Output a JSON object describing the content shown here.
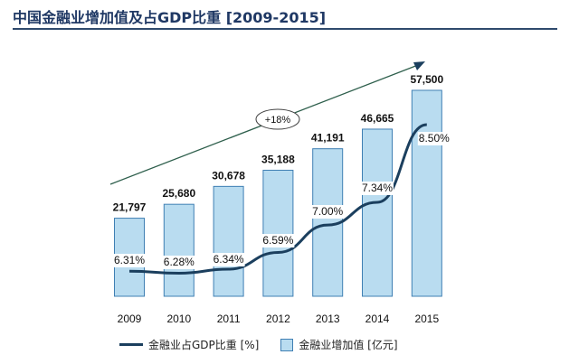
{
  "title": "中国金融业增加值及占GDP比重 [2009-2015]",
  "chart_data": {
    "type": "bar",
    "categories": [
      "2009",
      "2010",
      "2011",
      "2012",
      "2013",
      "2014",
      "2015"
    ],
    "series": [
      {
        "name": "金融业增加值 [亿元]",
        "type": "bar",
        "values": [
          21797,
          25680,
          30678,
          35188,
          41191,
          46665,
          57500
        ],
        "labels": [
          "21,797",
          "25,680",
          "30,678",
          "35,188",
          "41,191",
          "46,665",
          "57,500"
        ]
      },
      {
        "name": "金融业占GDP比重 [%]",
        "type": "line",
        "values": [
          6.31,
          6.28,
          6.34,
          6.59,
          7.0,
          7.34,
          8.5
        ],
        "labels": [
          "6.31%",
          "6.28%",
          "6.34%",
          "6.59%",
          "7.00%",
          "7.34%",
          "8.50%"
        ]
      }
    ],
    "annotation": "+18%",
    "legend_position": "bottom",
    "grid": false
  },
  "colors": {
    "bar_fill": "#b9dcf0",
    "bar_stroke": "#3f7fb3",
    "line": "#1b3f5e",
    "arrow": "#2e5f4c",
    "title": "#1f3864"
  },
  "legend": {
    "line_label": "金融业占GDP比重 [%]",
    "bar_label": "金融业增加值 [亿元]"
  }
}
